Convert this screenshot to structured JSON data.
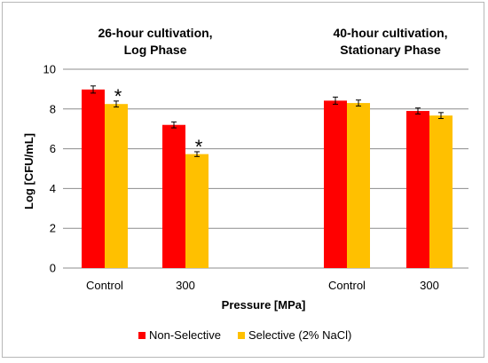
{
  "chart_data": {
    "type": "bar",
    "title": "",
    "xlabel": "Pressure [MPa]",
    "ylabel": "Log [CFU/mL]",
    "ylim": [
      0,
      10
    ],
    "yticks": [
      "0",
      "2",
      "4",
      "6",
      "8",
      "10"
    ],
    "grid": true,
    "legend_position": "bottom",
    "groups": [
      {
        "heading_line1": "26-hour cultivation,",
        "heading_line2": "Log Phase"
      },
      {
        "heading_line1": "40-hour cultivation,",
        "heading_line2": "Stationary Phase"
      }
    ],
    "categories": [
      "Control",
      "300",
      "Control",
      "300"
    ],
    "series": [
      {
        "name": "Non-Selective",
        "color": "#ff0000",
        "values": [
          8.98,
          7.2,
          8.42,
          7.9
        ],
        "errors": [
          0.18,
          0.15,
          0.18,
          0.15
        ]
      },
      {
        "name": "Selective (2% NaCl)",
        "color": "#ffc000",
        "values": [
          8.25,
          5.73,
          8.3,
          7.67
        ],
        "errors": [
          0.15,
          0.12,
          0.15,
          0.15
        ]
      }
    ],
    "annotations": [
      {
        "text": "*",
        "category_index": 0,
        "series_index": 1
      },
      {
        "text": "*",
        "category_index": 1,
        "series_index": 1
      }
    ]
  }
}
